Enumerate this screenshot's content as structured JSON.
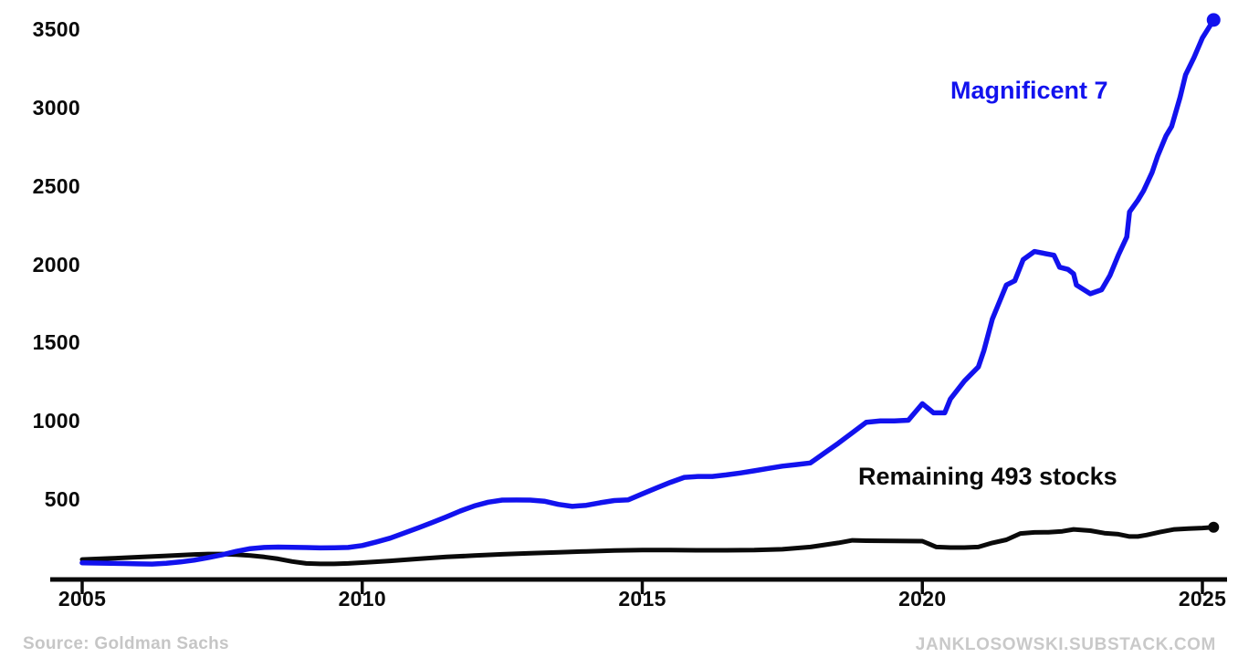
{
  "chart_data": {
    "type": "line",
    "title": "",
    "xlabel": "",
    "ylabel": "",
    "grid": false,
    "legend_position": "inline-annotations",
    "x_axis": {
      "ticks": [
        2005,
        2010,
        2015,
        2020,
        2025
      ],
      "range": [
        2005,
        2025.4
      ]
    },
    "y_axis": {
      "ticks": [
        500,
        1000,
        1500,
        2000,
        2500,
        3000,
        3500
      ],
      "range": [
        0,
        3600
      ]
    },
    "series": [
      {
        "name": "Magnificent 7",
        "color": "#1212ee",
        "end_marker": true,
        "points": [
          [
            2005.0,
            95
          ],
          [
            2005.25,
            93
          ],
          [
            2005.5,
            92
          ],
          [
            2005.75,
            90
          ],
          [
            2006.0,
            88
          ],
          [
            2006.25,
            87
          ],
          [
            2006.5,
            92
          ],
          [
            2006.75,
            100
          ],
          [
            2007.0,
            112
          ],
          [
            2007.25,
            128
          ],
          [
            2007.5,
            146
          ],
          [
            2007.75,
            168
          ],
          [
            2008.0,
            185
          ],
          [
            2008.25,
            193
          ],
          [
            2008.5,
            195
          ],
          [
            2008.75,
            194
          ],
          [
            2009.0,
            192
          ],
          [
            2009.25,
            190
          ],
          [
            2009.5,
            191
          ],
          [
            2009.75,
            193
          ],
          [
            2010.0,
            205
          ],
          [
            2010.25,
            228
          ],
          [
            2010.5,
            252
          ],
          [
            2010.75,
            285
          ],
          [
            2011.0,
            318
          ],
          [
            2011.25,
            352
          ],
          [
            2011.5,
            388
          ],
          [
            2011.75,
            425
          ],
          [
            2012.0,
            458
          ],
          [
            2012.25,
            482
          ],
          [
            2012.5,
            495
          ],
          [
            2012.75,
            496
          ],
          [
            2013.0,
            495
          ],
          [
            2013.25,
            488
          ],
          [
            2013.5,
            468
          ],
          [
            2013.75,
            455
          ],
          [
            2014.0,
            462
          ],
          [
            2014.25,
            478
          ],
          [
            2014.5,
            492
          ],
          [
            2014.75,
            497
          ],
          [
            2015.0,
            535
          ],
          [
            2015.25,
            572
          ],
          [
            2015.5,
            608
          ],
          [
            2015.75,
            640
          ],
          [
            2016.0,
            646
          ],
          [
            2016.25,
            646
          ],
          [
            2016.5,
            656
          ],
          [
            2016.75,
            668
          ],
          [
            2017.0,
            682
          ],
          [
            2017.25,
            697
          ],
          [
            2017.5,
            712
          ],
          [
            2017.75,
            722
          ],
          [
            2018.0,
            732
          ],
          [
            2018.25,
            795
          ],
          [
            2018.5,
            858
          ],
          [
            2018.75,
            925
          ],
          [
            2019.0,
            992
          ],
          [
            2019.25,
            1000
          ],
          [
            2019.5,
            1000
          ],
          [
            2019.75,
            1005
          ],
          [
            2020.0,
            1110
          ],
          [
            2020.2,
            1052
          ],
          [
            2020.4,
            1052
          ],
          [
            2020.5,
            1140
          ],
          [
            2020.75,
            1255
          ],
          [
            2021.0,
            1345
          ],
          [
            2021.1,
            1450
          ],
          [
            2021.25,
            1650
          ],
          [
            2021.5,
            1868
          ],
          [
            2021.65,
            1895
          ],
          [
            2021.8,
            2030
          ],
          [
            2022.0,
            2082
          ],
          [
            2022.35,
            2058
          ],
          [
            2022.45,
            1982
          ],
          [
            2022.6,
            1968
          ],
          [
            2022.7,
            1940
          ],
          [
            2022.75,
            1868
          ],
          [
            2023.0,
            1812
          ],
          [
            2023.2,
            1838
          ],
          [
            2023.35,
            1930
          ],
          [
            2023.5,
            2060
          ],
          [
            2023.65,
            2175
          ],
          [
            2023.7,
            2335
          ],
          [
            2023.85,
            2410
          ],
          [
            2023.95,
            2470
          ],
          [
            2024.1,
            2585
          ],
          [
            2024.2,
            2690
          ],
          [
            2024.35,
            2820
          ],
          [
            2024.45,
            2880
          ],
          [
            2024.6,
            3065
          ],
          [
            2024.7,
            3210
          ],
          [
            2024.85,
            3320
          ],
          [
            2025.0,
            3445
          ],
          [
            2025.2,
            3560
          ]
        ]
      },
      {
        "name": "Remaining 493 stocks",
        "color": "#0a0a0a",
        "end_marker": true,
        "points": [
          [
            2005.0,
            116
          ],
          [
            2005.5,
            123
          ],
          [
            2006.0,
            131
          ],
          [
            2006.5,
            139
          ],
          [
            2007.0,
            148
          ],
          [
            2007.25,
            151
          ],
          [
            2007.5,
            151
          ],
          [
            2007.75,
            147
          ],
          [
            2008.0,
            141
          ],
          [
            2008.25,
            132
          ],
          [
            2008.5,
            120
          ],
          [
            2008.75,
            103
          ],
          [
            2009.0,
            91
          ],
          [
            2009.25,
            88
          ],
          [
            2009.5,
            88
          ],
          [
            2009.75,
            91
          ],
          [
            2010.0,
            96
          ],
          [
            2010.5,
            107
          ],
          [
            2011.0,
            120
          ],
          [
            2011.5,
            132
          ],
          [
            2012.0,
            141
          ],
          [
            2012.5,
            149
          ],
          [
            2013.0,
            156
          ],
          [
            2013.5,
            162
          ],
          [
            2014.0,
            168
          ],
          [
            2014.5,
            173
          ],
          [
            2015.0,
            176
          ],
          [
            2015.5,
            176
          ],
          [
            2016.0,
            175
          ],
          [
            2016.5,
            175
          ],
          [
            2017.0,
            176
          ],
          [
            2017.5,
            181
          ],
          [
            2018.0,
            196
          ],
          [
            2018.5,
            222
          ],
          [
            2018.75,
            238
          ],
          [
            2019.0,
            236
          ],
          [
            2019.5,
            235
          ],
          [
            2020.0,
            233
          ],
          [
            2020.25,
            196
          ],
          [
            2020.5,
            192
          ],
          [
            2020.75,
            192
          ],
          [
            2021.0,
            196
          ],
          [
            2021.25,
            222
          ],
          [
            2021.5,
            242
          ],
          [
            2021.75,
            282
          ],
          [
            2022.0,
            289
          ],
          [
            2022.25,
            290
          ],
          [
            2022.5,
            296
          ],
          [
            2022.7,
            308
          ],
          [
            2023.0,
            300
          ],
          [
            2023.25,
            284
          ],
          [
            2023.5,
            277
          ],
          [
            2023.7,
            263
          ],
          [
            2023.85,
            263
          ],
          [
            2024.0,
            272
          ],
          [
            2024.25,
            292
          ],
          [
            2024.5,
            308
          ],
          [
            2024.75,
            313
          ],
          [
            2025.0,
            317
          ],
          [
            2025.2,
            322
          ]
        ]
      }
    ],
    "annotations": [
      {
        "text": "Magnificent 7",
        "color": "#1212ee"
      },
      {
        "text": "Remaining 493 stocks",
        "color": "#0a0a0a"
      }
    ]
  },
  "labels": {
    "mag7": "Magnificent 7",
    "rem493": "Remaining 493 stocks"
  },
  "footer": {
    "source": "Source:  Goldman Sachs",
    "site": "JANKLOSOWSKI.SUBSTACK.COM"
  },
  "colors": {
    "mag7_blue": "#1212ee",
    "line_black": "#0a0a0a",
    "footer_gray": "#c6c6c6"
  }
}
